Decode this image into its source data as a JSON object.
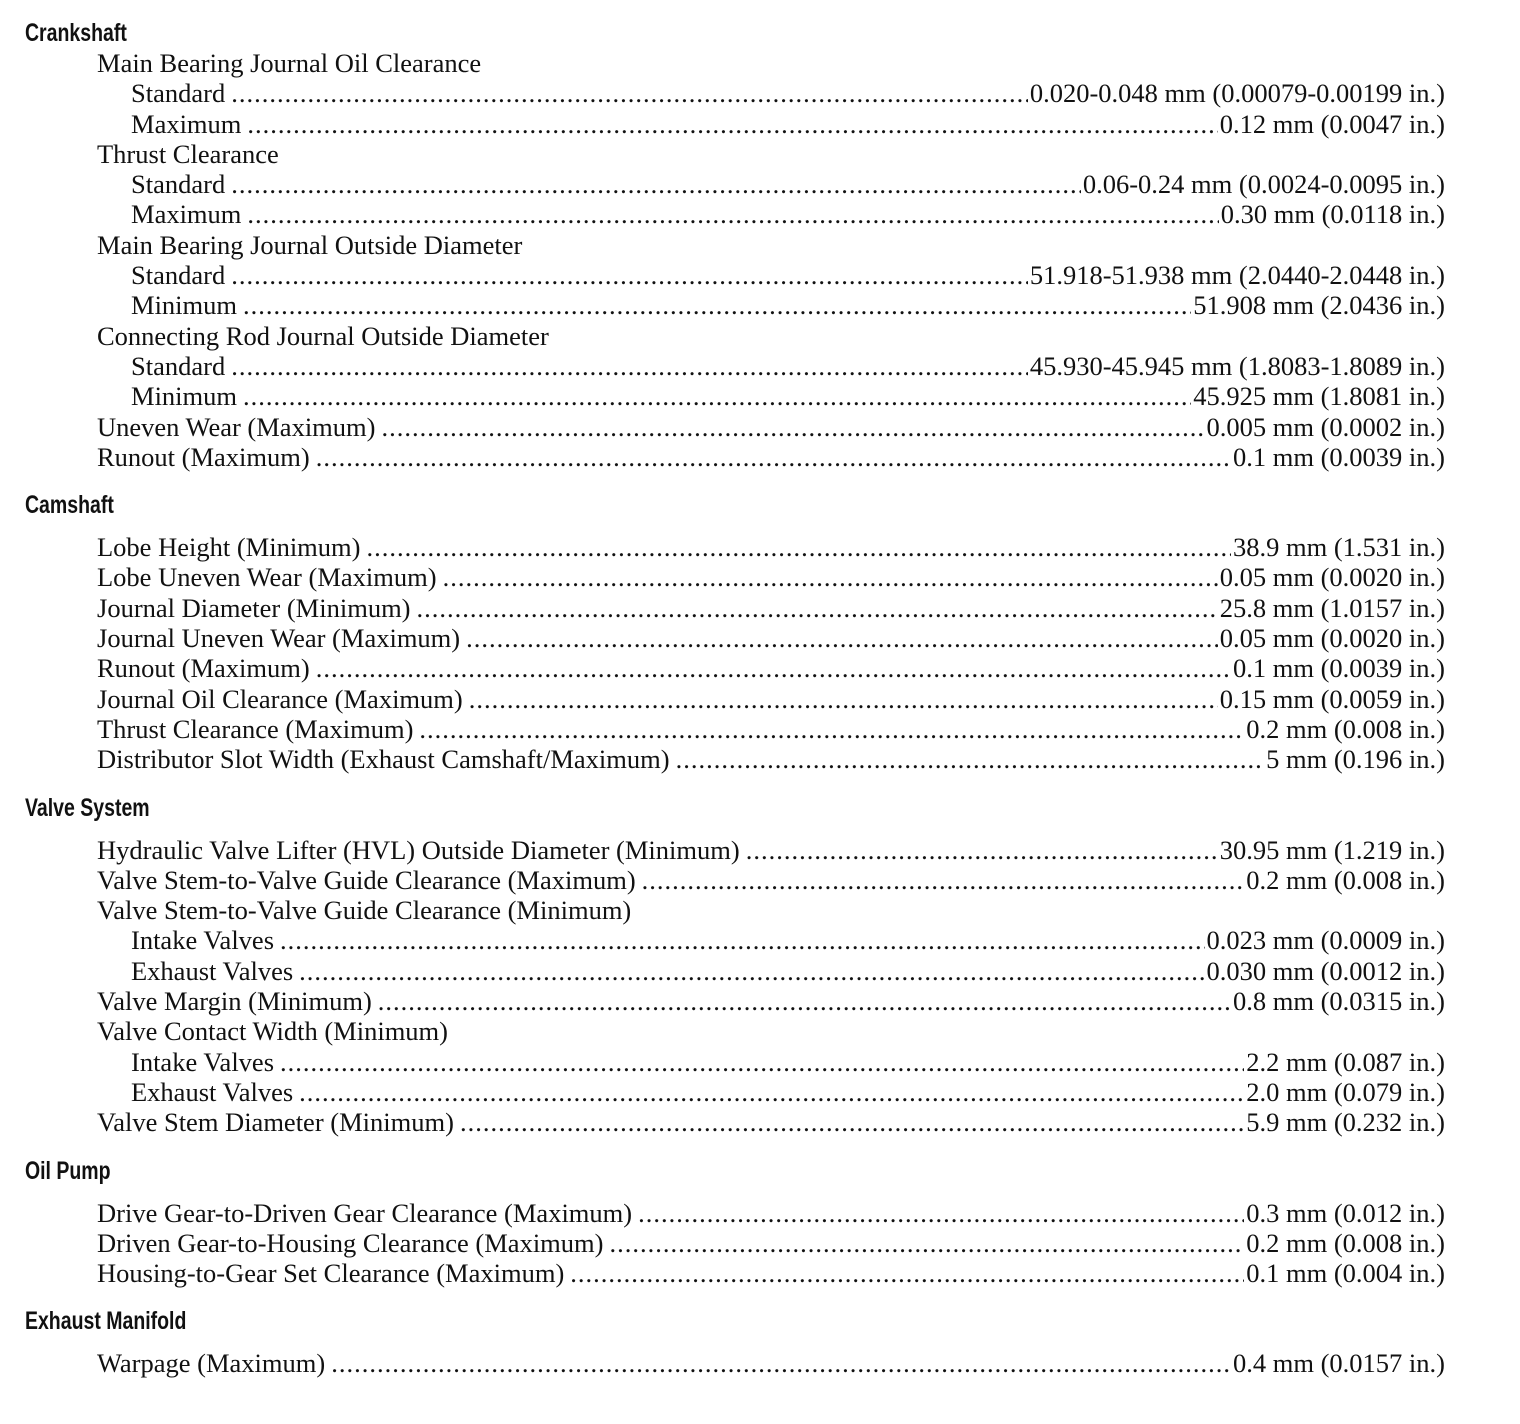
{
  "sections": [
    {
      "title": "Crankshaft",
      "items": [
        {
          "label": "Main Bearing Journal Oil Clearance",
          "level": 1
        },
        {
          "label": "Standard",
          "value": "0.020-0.048 mm (0.00079-0.00199 in.)",
          "level": 2
        },
        {
          "label": "Maximum",
          "value": "0.12 mm (0.0047 in.)",
          "level": 2
        },
        {
          "label": "Thrust Clearance",
          "level": 1
        },
        {
          "label": "Standard",
          "value": "0.06-0.24 mm (0.0024-0.0095 in.)",
          "level": 2
        },
        {
          "label": "Maximum",
          "value": "0.30 mm (0.0118 in.)",
          "level": 2
        },
        {
          "label": "Main Bearing Journal Outside Diameter",
          "level": 1
        },
        {
          "label": "Standard",
          "value": "51.918-51.938 mm (2.0440-2.0448 in.)",
          "level": 2
        },
        {
          "label": "Minimum",
          "value": "51.908 mm (2.0436 in.)",
          "level": 2
        },
        {
          "label": "Connecting Rod Journal Outside Diameter",
          "level": 1
        },
        {
          "label": "Standard",
          "value": "45.930-45.945 mm (1.8083-1.8089 in.)",
          "level": 2
        },
        {
          "label": "Minimum",
          "value": "45.925 mm (1.8081 in.)",
          "level": 2
        },
        {
          "label": "Uneven Wear (Maximum)",
          "value": "0.005 mm (0.0002 in.)",
          "level": 1
        },
        {
          "label": "Runout (Maximum)",
          "value": "0.1 mm (0.0039 in.)",
          "level": 1
        }
      ]
    },
    {
      "title": "Camshaft",
      "items": [
        {
          "label": "Lobe Height (Minimum)",
          "value": "38.9 mm (1.531 in.)",
          "level": 1
        },
        {
          "label": "Lobe Uneven Wear (Maximum)",
          "value": "0.05 mm (0.0020 in.)",
          "level": 1
        },
        {
          "label": "Journal Diameter (Minimum)",
          "value": "25.8 mm (1.0157 in.)",
          "level": 1
        },
        {
          "label": "Journal Uneven Wear (Maximum)",
          "value": "0.05 mm (0.0020 in.)",
          "level": 1
        },
        {
          "label": "Runout (Maximum)",
          "value": "0.1 mm (0.0039 in.)",
          "level": 1
        },
        {
          "label": "Journal Oil Clearance (Maximum)",
          "value": "0.15 mm (0.0059 in.)",
          "level": 1
        },
        {
          "label": "Thrust Clearance (Maximum)",
          "value": "0.2 mm (0.008 in.)",
          "level": 1
        },
        {
          "label": "Distributor Slot Width (Exhaust Camshaft/Maximum)",
          "value": "5 mm (0.196 in.)",
          "level": 1
        }
      ]
    },
    {
      "title": "Valve System",
      "items": [
        {
          "label": "Hydraulic Valve Lifter (HVL) Outside Diameter (Minimum)",
          "value": "30.95 mm (1.219 in.)",
          "level": 1
        },
        {
          "label": "Valve Stem-to-Valve Guide Clearance (Maximum)",
          "value": "0.2 mm (0.008 in.)",
          "level": 1
        },
        {
          "label": "Valve Stem-to-Valve Guide Clearance (Minimum)",
          "level": 1
        },
        {
          "label": "Intake Valves",
          "value": "0.023 mm (0.0009 in.)",
          "level": 2
        },
        {
          "label": "Exhaust Valves",
          "value": "0.030 mm (0.0012 in.)",
          "level": 2
        },
        {
          "label": "Valve Margin (Minimum)",
          "value": "0.8 mm (0.0315 in.)",
          "level": 1
        },
        {
          "label": "Valve Contact Width (Minimum)",
          "level": 1
        },
        {
          "label": "Intake Valves",
          "value": "2.2 mm (0.087 in.)",
          "level": 2
        },
        {
          "label": "Exhaust Valves",
          "value": "2.0 mm (0.079 in.)",
          "level": 2
        },
        {
          "label": "Valve Stem Diameter (Minimum)",
          "value": "5.9 mm (0.232 in.)",
          "level": 1
        }
      ]
    },
    {
      "title": "Oil Pump",
      "items": [
        {
          "label": "Drive Gear-to-Driven Gear Clearance (Maximum)",
          "value": "0.3 mm (0.012 in.)",
          "level": 1
        },
        {
          "label": "Driven Gear-to-Housing Clearance (Maximum)",
          "value": "0.2 mm (0.008 in.)",
          "level": 1
        },
        {
          "label": "Housing-to-Gear Set Clearance (Maximum)",
          "value": "0.1 mm (0.004 in.)",
          "level": 1
        }
      ]
    },
    {
      "title": "Exhaust Manifold",
      "items": [
        {
          "label": "Warpage (Maximum)",
          "value": "0.4 mm (0.0157 in.)",
          "level": 1
        }
      ]
    }
  ]
}
